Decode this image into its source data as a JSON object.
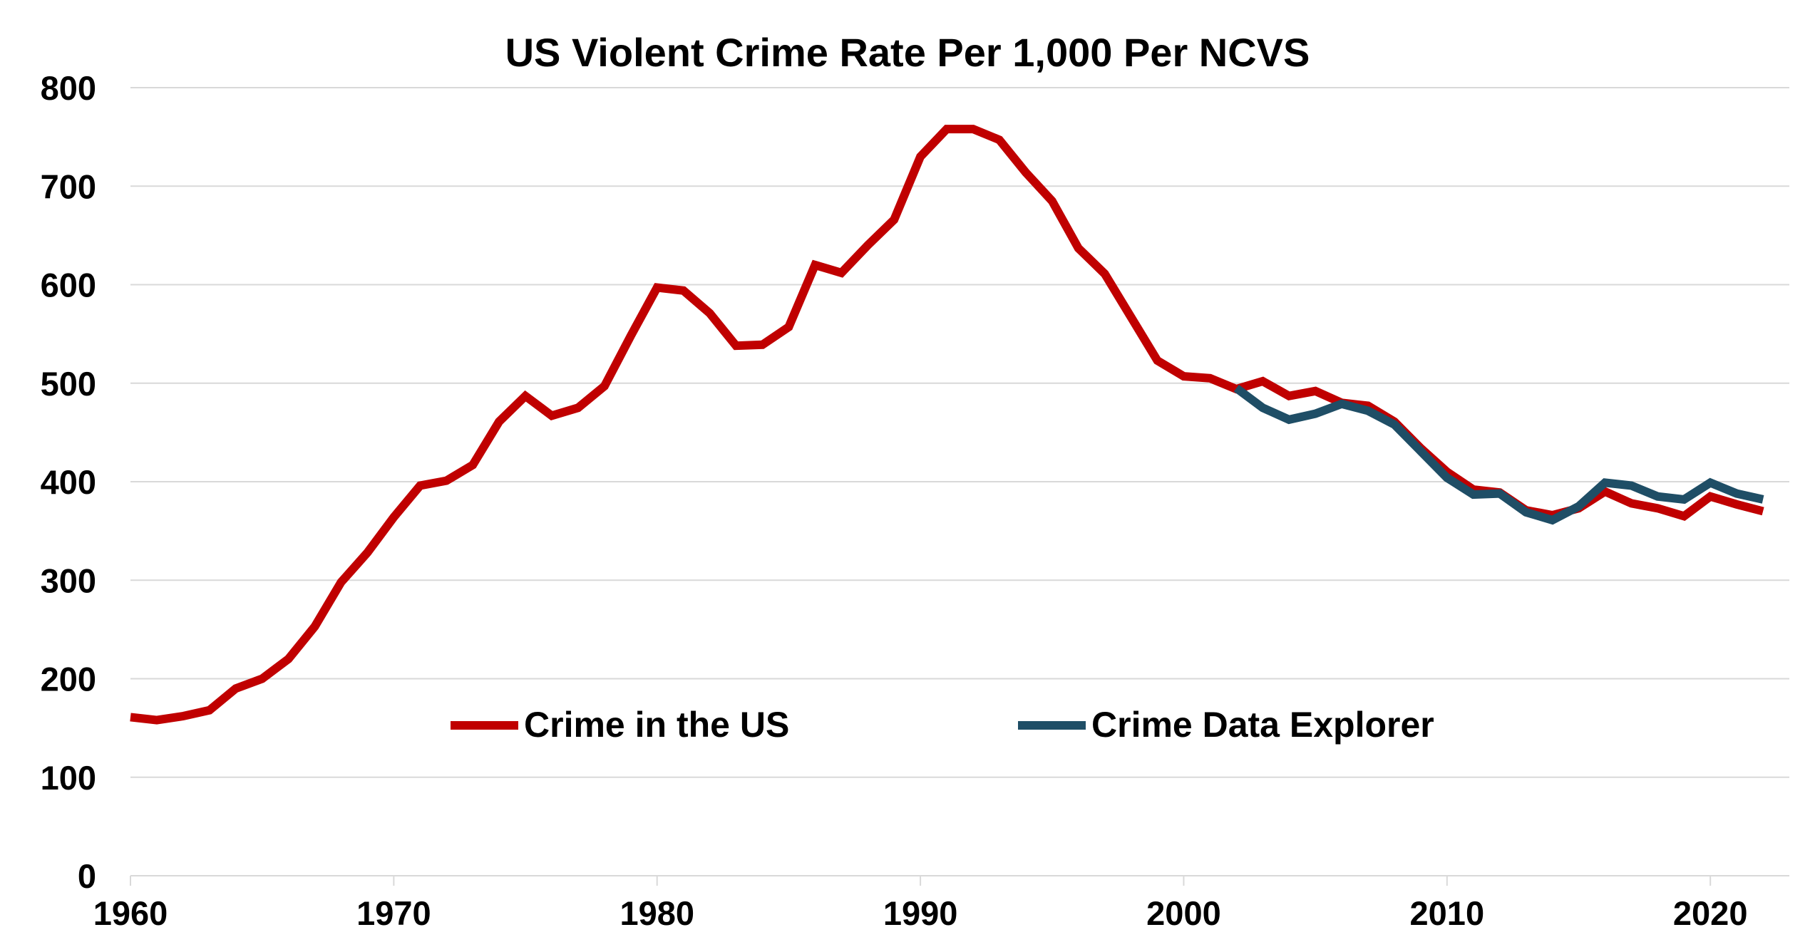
{
  "chart_data": {
    "type": "line",
    "title": "US Violent Crime Rate Per 1,000 Per NCVS",
    "xlabel": "",
    "ylabel": "",
    "xlim": [
      1960,
      2023
    ],
    "ylim": [
      0,
      800
    ],
    "yticks": [
      0,
      100,
      200,
      300,
      400,
      500,
      600,
      700,
      800
    ],
    "xticks": [
      1960,
      1970,
      1980,
      1990,
      2000,
      2010,
      2020
    ],
    "grid": true,
    "legend_position": "center",
    "series": [
      {
        "name": "Crime in the US",
        "color": "#c00000",
        "x": [
          1960,
          1961,
          1962,
          1963,
          1964,
          1965,
          1966,
          1967,
          1968,
          1969,
          1970,
          1971,
          1972,
          1973,
          1974,
          1975,
          1976,
          1977,
          1978,
          1979,
          1980,
          1981,
          1982,
          1983,
          1984,
          1985,
          1986,
          1987,
          1988,
          1989,
          1990,
          1991,
          1992,
          1993,
          1994,
          1995,
          1996,
          1997,
          1998,
          1999,
          2000,
          2001,
          2002,
          2003,
          2004,
          2005,
          2006,
          2007,
          2008,
          2009,
          2010,
          2011,
          2012,
          2013,
          2014,
          2015,
          2016,
          2017,
          2018,
          2019,
          2020,
          2021,
          2022
        ],
        "values": [
          161,
          158,
          162,
          168,
          190,
          200,
          220,
          253,
          298,
          328,
          364,
          396,
          401,
          417,
          461,
          487,
          467,
          475,
          497,
          548,
          597,
          594,
          571,
          538,
          539,
          557,
          620,
          612,
          640,
          666,
          730,
          758,
          758,
          747,
          714,
          685,
          637,
          611,
          567,
          523,
          507,
          505,
          494,
          502,
          487,
          492,
          480,
          477,
          461,
          434,
          410,
          392,
          389,
          371,
          366,
          373,
          390,
          378,
          373,
          365,
          385,
          377,
          370
        ]
      },
      {
        "name": "Crime Data Explorer",
        "color": "#1f4e66",
        "x": [
          2002,
          2003,
          2004,
          2005,
          2006,
          2007,
          2008,
          2009,
          2010,
          2011,
          2012,
          2013,
          2014,
          2015,
          2016,
          2017,
          2018,
          2019,
          2020,
          2021,
          2022
        ],
        "values": [
          495,
          475,
          463,
          469,
          479,
          472,
          458,
          431,
          404,
          387,
          388,
          369,
          361,
          375,
          399,
          396,
          385,
          382,
          399,
          388,
          382
        ]
      }
    ]
  }
}
